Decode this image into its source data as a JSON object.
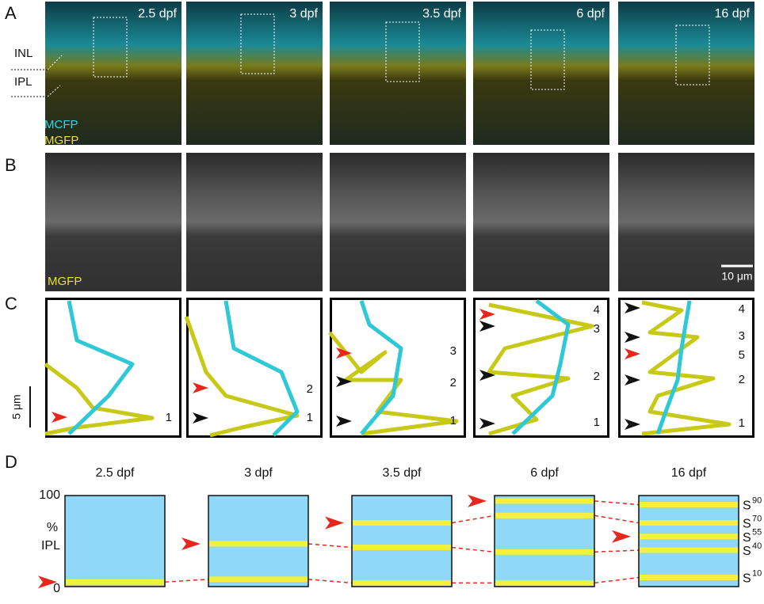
{
  "panel_labels": [
    "A",
    "B",
    "C",
    "D"
  ],
  "panel_a": {
    "stages": [
      "2.5 dpf",
      "3 dpf",
      "3.5 dpf",
      "6 dpf",
      "16 dpf"
    ],
    "layer_labels": [
      "INL",
      "IPL"
    ],
    "channels": [
      "MCFP",
      "MGFP"
    ]
  },
  "panel_b": {
    "channel": "MGFP",
    "scale_bar": "10 μm"
  },
  "panel_c": {
    "scale_bar": "5 μm",
    "peak_labels": [
      [
        "1"
      ],
      [
        "2",
        "1"
      ],
      [
        "3",
        "2",
        "1"
      ],
      [
        "4",
        "3",
        "2",
        "1"
      ],
      [
        "4",
        "3",
        "5",
        "2",
        "1"
      ]
    ]
  },
  "panel_d": {
    "stages": [
      "2.5 dpf",
      "3 dpf",
      "3.5 dpf",
      "6 dpf",
      "16 dpf"
    ],
    "y_label": [
      "%",
      "IPL"
    ],
    "ylim": [
      0,
      100
    ],
    "yticks": [
      0,
      100
    ],
    "bands": [
      [
        5
      ],
      [
        8,
        47
      ],
      [
        4,
        43,
        70
      ],
      [
        4,
        38,
        78,
        94
      ],
      [
        10,
        40,
        55,
        70,
        90
      ]
    ],
    "new_band": [
      0,
      1,
      2,
      3,
      2
    ],
    "strata": [
      {
        "name": "S",
        "sup": "90"
      },
      {
        "name": "S",
        "sup": "70"
      },
      {
        "name": "S",
        "sup": "55"
      },
      {
        "name": "S",
        "sup": "40"
      },
      {
        "name": "S",
        "sup": "10"
      }
    ]
  }
}
